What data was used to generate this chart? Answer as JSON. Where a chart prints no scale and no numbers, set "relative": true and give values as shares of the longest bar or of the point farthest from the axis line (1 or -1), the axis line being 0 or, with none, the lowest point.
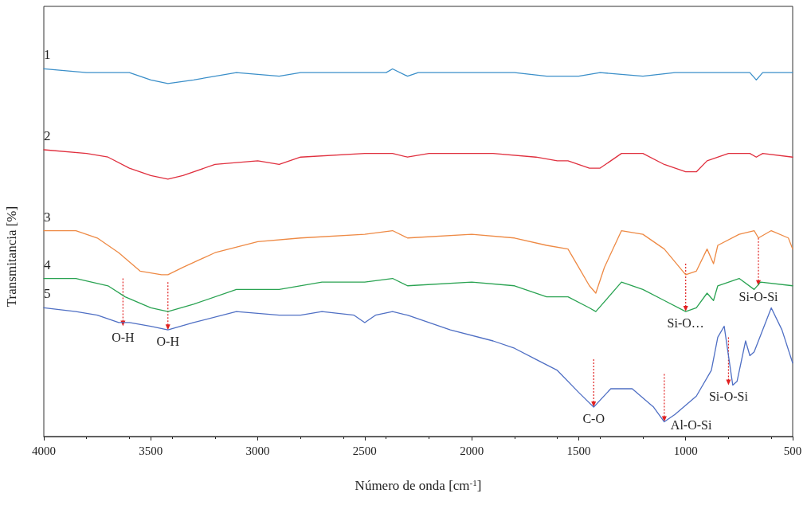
{
  "chart_data": {
    "type": "line",
    "xlabel": "Número de onda [cm$^{-1}$]",
    "ylabel": "Transmitancia [%]",
    "relative": true,
    "xlim": [
      4000,
      500
    ],
    "xticks": [
      4000,
      3500,
      3000,
      2500,
      2000,
      1500,
      1000,
      500
    ],
    "grid": false,
    "legend": false,
    "marker": "none",
    "line_style": "solid",
    "series": [
      {
        "name": "1",
        "color": "#3b8fc9",
        "x": [
          4000,
          3800,
          3700,
          3600,
          3500,
          3420,
          3300,
          3100,
          2900,
          2800,
          2400,
          2370,
          2300,
          2250,
          2000,
          1800,
          1650,
          1600,
          1500,
          1400,
          1200,
          1050,
          900,
          700,
          670,
          640,
          500
        ],
        "values": [
          1.0,
          0.99,
          0.99,
          0.99,
          0.97,
          0.96,
          0.97,
          0.99,
          0.98,
          0.99,
          0.99,
          1.0,
          0.98,
          0.99,
          0.99,
          0.99,
          0.98,
          0.98,
          0.98,
          0.99,
          0.98,
          0.99,
          0.99,
          0.99,
          0.97,
          0.99,
          0.99
        ]
      },
      {
        "name": "2",
        "color": "#e0303f",
        "x": [
          4000,
          3800,
          3700,
          3600,
          3500,
          3420,
          3350,
          3200,
          3000,
          2900,
          2800,
          2500,
          2370,
          2300,
          2200,
          1900,
          1700,
          1600,
          1550,
          1450,
          1400,
          1300,
          1200,
          1100,
          1000,
          950,
          900,
          800,
          700,
          670,
          640,
          500
        ],
        "values": [
          0.78,
          0.77,
          0.76,
          0.73,
          0.71,
          0.7,
          0.71,
          0.74,
          0.75,
          0.74,
          0.76,
          0.77,
          0.77,
          0.76,
          0.77,
          0.77,
          0.76,
          0.75,
          0.75,
          0.73,
          0.73,
          0.77,
          0.77,
          0.74,
          0.72,
          0.72,
          0.75,
          0.77,
          0.77,
          0.76,
          0.77,
          0.76
        ]
      },
      {
        "name": "3",
        "color": "#ee8a45",
        "x": [
          4000,
          3850,
          3750,
          3650,
          3550,
          3450,
          3420,
          3350,
          3200,
          3000,
          2800,
          2500,
          2370,
          2300,
          2000,
          1800,
          1650,
          1550,
          1500,
          1450,
          1420,
          1380,
          1300,
          1200,
          1100,
          1000,
          950,
          900,
          870,
          850,
          750,
          680,
          660,
          600,
          520,
          500
        ],
        "values": [
          0.56,
          0.56,
          0.54,
          0.5,
          0.45,
          0.44,
          0.44,
          0.46,
          0.5,
          0.53,
          0.54,
          0.55,
          0.56,
          0.54,
          0.55,
          0.54,
          0.52,
          0.51,
          0.46,
          0.41,
          0.39,
          0.46,
          0.56,
          0.55,
          0.51,
          0.44,
          0.45,
          0.51,
          0.47,
          0.52,
          0.55,
          0.56,
          0.54,
          0.56,
          0.54,
          0.51
        ]
      },
      {
        "name": "4",
        "color": "#2aa352",
        "x": [
          4000,
          3850,
          3700,
          3620,
          3500,
          3420,
          3300,
          3100,
          2900,
          2700,
          2500,
          2370,
          2300,
          2000,
          1800,
          1650,
          1550,
          1450,
          1420,
          1300,
          1200,
          1100,
          1000,
          950,
          900,
          870,
          850,
          750,
          680,
          650,
          500
        ],
        "values": [
          0.43,
          0.43,
          0.41,
          0.38,
          0.35,
          0.34,
          0.36,
          0.4,
          0.4,
          0.42,
          0.42,
          0.43,
          0.41,
          0.42,
          0.41,
          0.38,
          0.38,
          0.35,
          0.34,
          0.42,
          0.4,
          0.37,
          0.34,
          0.35,
          0.39,
          0.37,
          0.41,
          0.43,
          0.4,
          0.42,
          0.41
        ]
      },
      {
        "name": "5",
        "color": "#4f6fc4",
        "x": [
          4000,
          3850,
          3750,
          3650,
          3600,
          3500,
          3420,
          3300,
          3100,
          2900,
          2800,
          2700,
          2550,
          2500,
          2450,
          2370,
          2300,
          2100,
          1900,
          1800,
          1700,
          1600,
          1500,
          1430,
          1350,
          1250,
          1150,
          1100,
          1050,
          950,
          880,
          850,
          820,
          780,
          760,
          720,
          700,
          680,
          600,
          550,
          500
        ],
        "values": [
          0.35,
          0.34,
          0.33,
          0.31,
          0.31,
          0.3,
          0.29,
          0.31,
          0.34,
          0.33,
          0.33,
          0.34,
          0.33,
          0.31,
          0.33,
          0.34,
          0.33,
          0.29,
          0.26,
          0.24,
          0.21,
          0.18,
          0.12,
          0.08,
          0.13,
          0.13,
          0.08,
          0.04,
          0.06,
          0.11,
          0.18,
          0.27,
          0.3,
          0.14,
          0.15,
          0.26,
          0.22,
          0.23,
          0.35,
          0.29,
          0.2
        ]
      }
    ],
    "annotations": [
      {
        "text": "O-H",
        "x": 3630,
        "y": 0.3
      },
      {
        "text": "O-H",
        "x": 3420,
        "y": 0.29
      },
      {
        "text": "C-O",
        "x": 1430,
        "y": 0.08
      },
      {
        "text": "Al-O-Si",
        "x": 1100,
        "y": 0.04
      },
      {
        "text": "Si-O…",
        "x": 1000,
        "y": 0.34
      },
      {
        "text": "Si-O-Si",
        "x": 800,
        "y": 0.14
      },
      {
        "text": "Si-O-Si",
        "x": 660,
        "y": 0.41
      }
    ]
  }
}
